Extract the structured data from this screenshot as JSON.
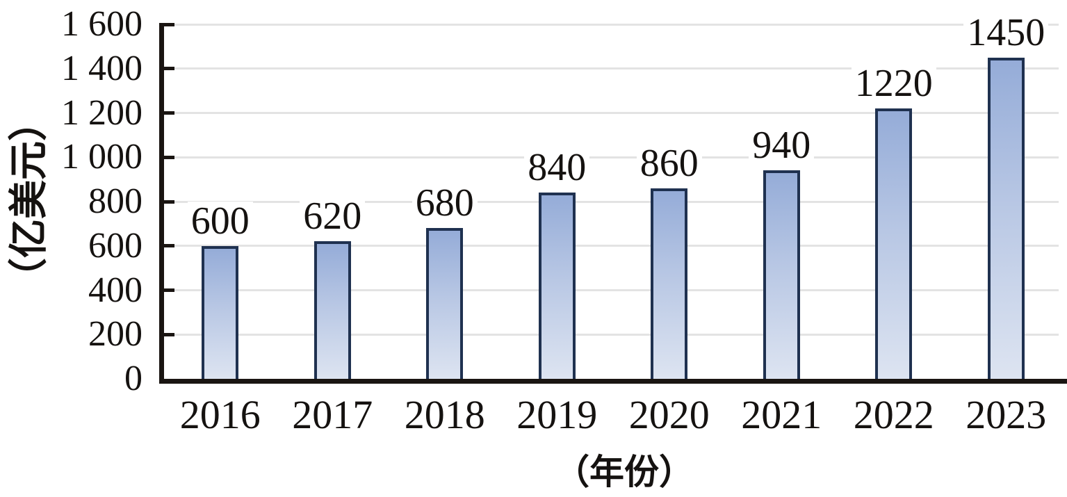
{
  "chart_data": {
    "type": "bar",
    "title": "",
    "categories": [
      "2016",
      "2017",
      "2018",
      "2019",
      "2020",
      "2021",
      "2022",
      "2023"
    ],
    "values": [
      600,
      620,
      680,
      840,
      860,
      940,
      1220,
      1450
    ],
    "data_labels": [
      "600",
      "620",
      "680",
      "840",
      "860",
      "940",
      "1220",
      "1450"
    ],
    "xlabel": "（年份）",
    "ylabel": "（亿美元）",
    "ylim": [
      0,
      1600
    ],
    "ytick_step": 200,
    "ytick_labels": [
      "0",
      "200",
      "400",
      "600",
      "800",
      "1 000",
      "1 200",
      "1 400",
      "1 600"
    ],
    "grid": "horizontal",
    "legend": "none",
    "colors": {
      "bar_gradient_top": "#95acd8",
      "bar_gradient_bottom": "#dde4f1",
      "bar_border": "#1f3150",
      "gridline": "#e3e3e3",
      "axis": "#1a1512",
      "text": "#151210"
    }
  }
}
